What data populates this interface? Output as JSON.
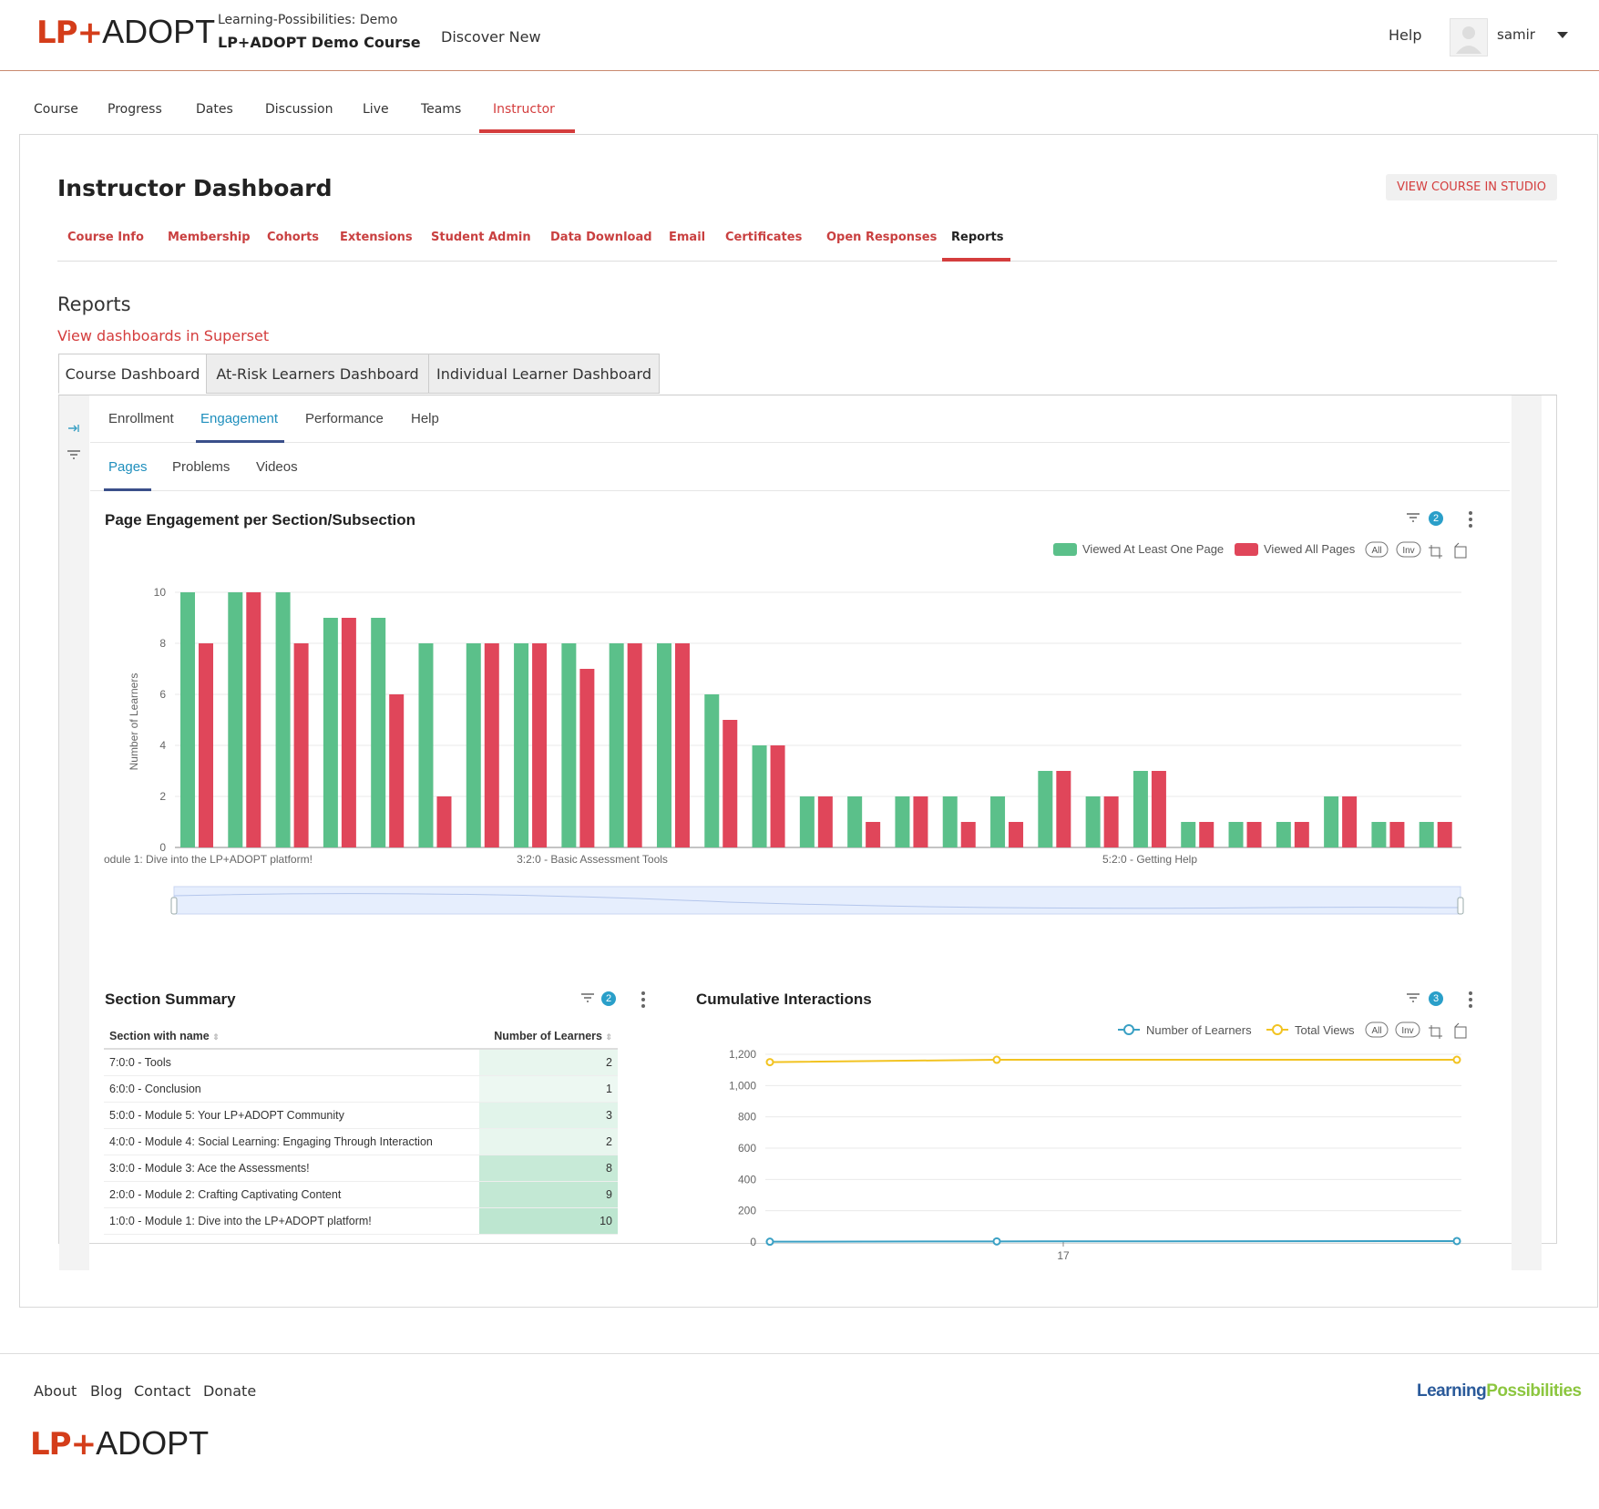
{
  "header": {
    "logo_lp": "LP+",
    "logo_adopt": "ADOPT",
    "org": "Learning-Possibilities: Demo",
    "course": "LP+ADOPT Demo Course",
    "discover": "Discover New",
    "help": "Help",
    "user": "samir"
  },
  "course_tabs": [
    "Course",
    "Progress",
    "Dates",
    "Discussion",
    "Live",
    "Teams",
    "Instructor"
  ],
  "dashboard": {
    "title": "Instructor Dashboard",
    "studio_button": "VIEW COURSE IN STUDIO",
    "tabs": [
      "Course Info",
      "Membership",
      "Cohorts",
      "Extensions",
      "Student Admin",
      "Data Download",
      "Email",
      "Certificates",
      "Open Responses",
      "Reports"
    ]
  },
  "reports": {
    "heading": "Reports",
    "superset_link": "View dashboards in Superset",
    "dash_tabs": [
      "Course Dashboard",
      "At-Risk Learners Dashboard",
      "Individual Learner Dashboard"
    ],
    "sub_tabs": [
      "Enrollment",
      "Engagement",
      "Performance",
      "Help"
    ],
    "sub_sub_tabs": [
      "Pages",
      "Problems",
      "Videos"
    ]
  },
  "page_engagement": {
    "title": "Page Engagement per Section/Subsection",
    "filter_count": "2",
    "legend_all": "All",
    "legend_inv": "Inv",
    "chart_data": {
      "type": "bar",
      "title": "Page Engagement per Section/Subsection",
      "ylabel": "Number of Learners",
      "ylim": [
        0,
        10
      ],
      "yticks": [
        "0",
        "2",
        "4",
        "6",
        "8",
        "10"
      ],
      "x_tick_labels": [
        "odule 1: Dive into the LP+ADOPT platform!",
        "3:2:0 - Basic Assessment Tools",
        "5:2:0 - Getting Help"
      ],
      "series": [
        {
          "name": "Viewed At Least One Page",
          "color": "#5bc08a",
          "values": [
            10,
            10,
            10,
            9,
            9,
            8,
            8,
            8,
            8,
            8,
            8,
            6,
            4,
            2,
            2,
            2,
            2,
            2,
            3,
            2,
            3,
            1,
            1,
            1,
            2,
            1,
            1
          ]
        },
        {
          "name": "Viewed All Pages",
          "color": "#e0465a",
          "values": [
            8,
            10,
            8,
            9,
            6,
            2,
            8,
            8,
            7,
            8,
            8,
            5,
            4,
            2,
            1,
            2,
            1,
            1,
            3,
            2,
            3,
            1,
            1,
            1,
            2,
            1,
            1
          ]
        }
      ]
    }
  },
  "section_summary": {
    "title": "Section Summary",
    "filter_count": "2",
    "columns": [
      "Section with name",
      "Number of Learners"
    ],
    "rows": [
      {
        "name": "7:0:0 - Tools",
        "value": "2",
        "level": 2
      },
      {
        "name": "6:0:0 - Conclusion",
        "value": "1",
        "level": 1
      },
      {
        "name": "5:0:0 - Module 5: Your LP+ADOPT Community",
        "value": "3",
        "level": 3
      },
      {
        "name": "4:0:0 - Module 4: Social Learning: Engaging Through Interaction",
        "value": "2",
        "level": 2
      },
      {
        "name": "3:0:0 - Module 3: Ace the Assessments!",
        "value": "8",
        "level": 8
      },
      {
        "name": "2:0:0 - Module 2: Crafting Captivating Content",
        "value": "9",
        "level": 9
      },
      {
        "name": "1:0:0 - Module 1: Dive into the LP+ADOPT platform!",
        "value": "10",
        "level": 10
      }
    ]
  },
  "cumulative": {
    "title": "Cumulative Interactions",
    "filter_count": "3",
    "legend_all": "All",
    "legend_inv": "Inv",
    "chart_data": {
      "type": "line",
      "title": "Cumulative Interactions",
      "ylim": [
        0,
        1200
      ],
      "yticks": [
        "0",
        "200",
        "400",
        "600",
        "800",
        "1,000",
        "1,200"
      ],
      "x_tick_labels": [
        "17"
      ],
      "series": [
        {
          "name": "Number of Learners",
          "color": "#3aa0c4",
          "values": [
            2,
            4,
            6
          ]
        },
        {
          "name": "Total Views",
          "color": "#f2c321",
          "values": [
            1150,
            1165,
            1165
          ]
        }
      ]
    }
  },
  "footer": {
    "links": [
      "About",
      "Blog",
      "Contact",
      "Donate"
    ],
    "brand_learning": "Learning",
    "brand_possibilities": "Possibilities",
    "logo_lp": "LP+",
    "logo_adopt": "ADOPT"
  },
  "colors": {
    "accent": "#d43d3d",
    "teal": "#1f8fbd",
    "green": "#5bc08a",
    "red": "#e0465a"
  }
}
